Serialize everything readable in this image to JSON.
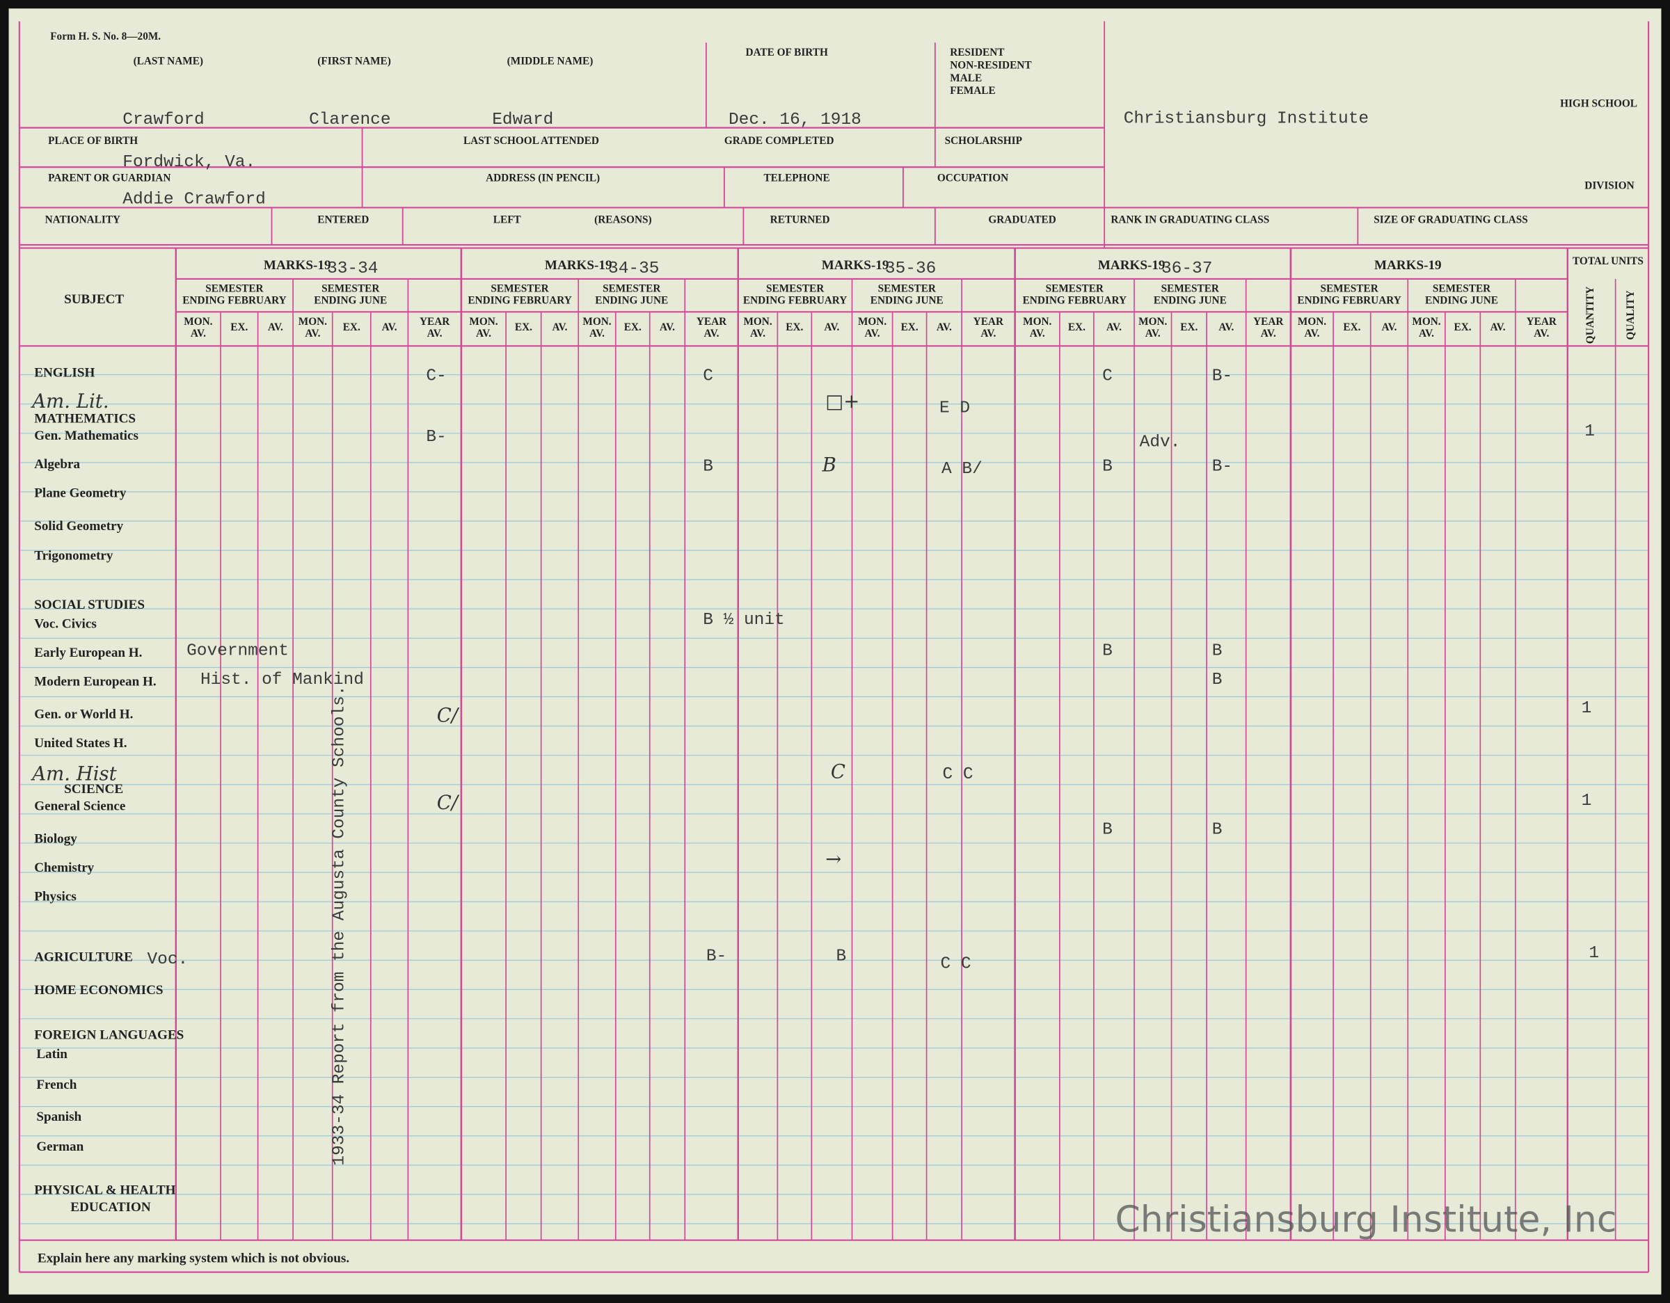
{
  "header": {
    "form": "Form H. S. No. 8—20M.",
    "last_name_label": "(LAST NAME)",
    "first_name_label": "(FIRST NAME)",
    "middle_name_label": "(MIDDLE NAME)",
    "birth_label": "DATE OF BIRTH",
    "status_labels": [
      "RESIDENT",
      "NON-RESIDENT",
      "MALE",
      "FEMALE"
    ],
    "last_name": "Crawford",
    "first_name": "Clarence",
    "middle_name": "Edward",
    "birth_date": "Dec. 16, 1918",
    "school": "Christiansburg Institute",
    "school_label": "HIGH SCHOOL",
    "division_label": "DIVISION",
    "place_label": "PLACE OF BIRTH",
    "last_school_label": "LAST SCHOOL ATTENDED",
    "grade_label": "GRADE COMPLETED",
    "scholarship_label": "SCHOLARSHIP",
    "place_of_birth": "Fordwick, Va.",
    "guardian_label": "PARENT OR GUARDIAN",
    "address_label": "ADDRESS (IN PENCIL)",
    "telephone_label": "TELEPHONE",
    "occupation_label": "OCCUPATION",
    "guardian": "Addie Crawford",
    "nationality_label": "NATIONALITY",
    "entered_label": "ENTERED",
    "left_label": "LEFT",
    "reasons_label": "(REASONS)",
    "returned_label": "RETURNED",
    "graduated_label": "GRADUATED",
    "rank_label": "RANK IN GRADUATING CLASS",
    "size_label": "SIZE OF GRADUATING CLASS"
  },
  "table": {
    "subject_label": "SUBJECT",
    "marks_label": "MARKS-19",
    "years": [
      "33-34",
      "34-35",
      "35-36",
      "36-37"
    ],
    "semester_labels": [
      [
        "SEMESTER",
        "ENDING FEBRUARY"
      ],
      [
        "SEMESTER",
        "ENDING JUNE"
      ]
    ],
    "column_labels": [
      [
        "MON.",
        "AV."
      ],
      [
        "EX."
      ],
      [
        "AV."
      ],
      [
        "MON.",
        "AV."
      ],
      [
        "EX."
      ],
      [
        "AV."
      ],
      [
        "YEAR",
        "AV."
      ]
    ],
    "total_label": "TOTAL UNITS",
    "unit_labels": [
      "QUANTITY",
      "QUALITY"
    ],
    "subjects": [
      "ENGLISH",
      "MATHEMATICS",
      "Gen. Mathematics",
      "Algebra",
      "Plane Geometry",
      "Solid Geometry",
      "Trigonometry",
      "SOCIAL STUDIES",
      "Voc. Civics",
      "Early European H.",
      "Modern European H.",
      "Gen. or World H.",
      "United States H.",
      "SCIENCE",
      "General Science",
      "Biology",
      "Chemistry",
      "Physics",
      "AGRICULTURE",
      "HOME ECONOMICS",
      "FOREIGN LANGUAGES",
      "Latin",
      "French",
      "Spanish",
      "German",
      "PHYSICAL & HEALTH",
      "EDUCATION"
    ],
    "entries": [
      "C-",
      "C",
      "C",
      "B-",
      "Am. Lit.",
      "□+",
      "E D",
      "B-",
      "Adv.",
      "1",
      "B",
      "B",
      "A B/",
      "B",
      "B-",
      "B ½ unit",
      "Government",
      "B",
      "B",
      "Hist. of Mankind",
      "B",
      "C/",
      "1",
      "Am. Hist",
      "C",
      "C C",
      "C/",
      "1",
      "B",
      "B",
      "→",
      "Voc.",
      "B-",
      "B",
      "C C",
      "1"
    ],
    "note": "1933-34 Report from the Augusta County Schools."
  },
  "footer": "Explain here any marking system which is not obvious.",
  "watermark": "Christiansburg Institute, Inc"
}
